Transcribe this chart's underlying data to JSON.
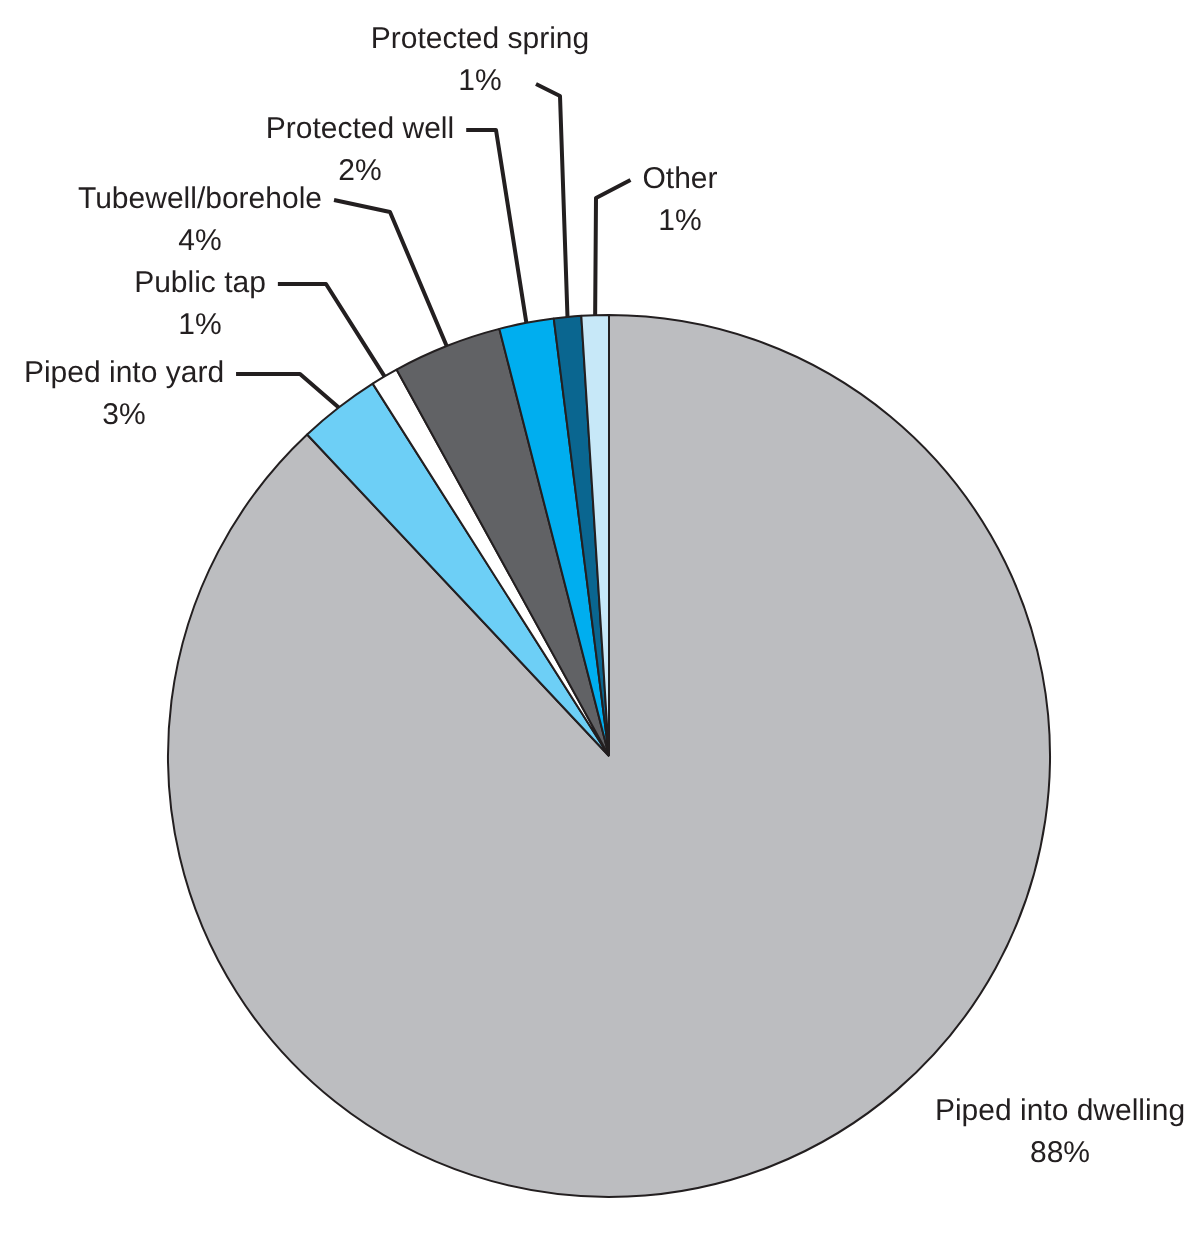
{
  "chart_data": {
    "type": "pie",
    "categories": [
      "Piped into dwelling",
      "Piped into yard",
      "Public tap",
      "Tubewell/borehole",
      "Protected well",
      "Protected spring",
      "Other"
    ],
    "values": [
      88,
      3,
      1,
      4,
      2,
      1,
      1
    ],
    "colors": [
      "#bcbdc0",
      "#6dcff6",
      "#ffffff",
      "#616265",
      "#00aeef",
      "#0a6690",
      "#c7e8f8"
    ],
    "value_labels": [
      "88%",
      "3%",
      "1%",
      "4%",
      "2%",
      "1%",
      "1%"
    ],
    "legend": false
  }
}
